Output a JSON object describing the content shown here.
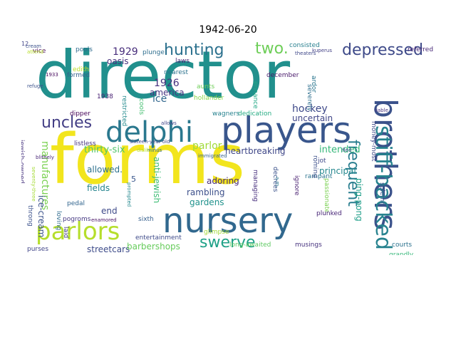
{
  "title": "1942-06-20",
  "words": [
    {
      "text": "director",
      "color": "#21908d"
    },
    {
      "text": "forms",
      "color": "#f2e51d"
    },
    {
      "text": "players",
      "color": "#39568c"
    },
    {
      "text": "nursery",
      "color": "#31688e"
    },
    {
      "text": "delphi",
      "color": "#2a788e"
    },
    {
      "text": "brothers",
      "color": "#3b528b"
    },
    {
      "text": "parlors",
      "color": "#b5de2b"
    },
    {
      "text": "stiff-backed",
      "color": "#26828e"
    },
    {
      "text": "hunting",
      "color": "#2c718e"
    },
    {
      "text": "depressed",
      "color": "#3e4a89"
    },
    {
      "text": "uncles",
      "color": "#433e85"
    },
    {
      "text": "swerve",
      "color": "#1fa187"
    },
    {
      "text": "frequent",
      "color": "#287d8e"
    },
    {
      "text": "two.",
      "color": "#6ece58"
    },
    {
      "text": "1929",
      "color": "#472d7b"
    },
    {
      "text": "1926",
      "color": "#46337f"
    },
    {
      "text": "hockey",
      "color": "#3e4989"
    },
    {
      "text": "parlor",
      "color": "#a0da39"
    },
    {
      "text": "thirty-six",
      "color": "#50c46a"
    },
    {
      "text": "ice",
      "color": "#31678e"
    },
    {
      "text": "manufactures",
      "color": "#7ad151"
    },
    {
      "text": "intended",
      "color": "#35b779"
    },
    {
      "text": "principal",
      "color": "#24878e"
    },
    {
      "text": "heartbreaking",
      "color": "#3f4788"
    },
    {
      "text": "uncertain",
      "color": "#404588"
    },
    {
      "text": "ping-pong",
      "color": "#1f9e89"
    },
    {
      "text": "ice-cream",
      "color": "#3b528b"
    },
    {
      "text": "fields",
      "color": "#25848e"
    },
    {
      "text": "gardens",
      "color": "#20928c"
    },
    {
      "text": "anti-jewish",
      "color": "#3dbc74"
    },
    {
      "text": "streetcars",
      "color": "#3e4c8a"
    },
    {
      "text": "barbershops",
      "color": "#67cc5c"
    },
    {
      "text": "oasis",
      "color": "#46317e"
    },
    {
      "text": "america",
      "color": "#463480"
    },
    {
      "text": "rambling",
      "color": "#3c4f8a"
    },
    {
      "text": "adoring",
      "color": "#472c7a"
    },
    {
      "text": "allowed.",
      "color": "#2d718e"
    },
    {
      "text": "end",
      "color": "#3e4a89"
    },
    {
      "text": "5",
      "color": "#39568c"
    },
    {
      "text": "vice",
      "color": "#450457"
    },
    {
      "text": "pools",
      "color": "#2f6c8e"
    },
    {
      "text": "plunge",
      "color": "#2e6e8e"
    },
    {
      "text": "laws",
      "color": "#482475"
    },
    {
      "text": "consisted",
      "color": "#277f8e"
    },
    {
      "text": "december",
      "color": "#48186a"
    },
    {
      "text": "hollander",
      "color": "#86d549"
    },
    {
      "text": "dedication",
      "color": "#25ab82"
    },
    {
      "text": "wagners",
      "color": "#26818e"
    },
    {
      "text": "money-most",
      "color": "#3f4889"
    },
    {
      "text": "referred",
      "color": "#482878"
    },
    {
      "text": "severely",
      "color": "#2e6f8e"
    },
    {
      "text": "managing",
      "color": "#472f7d"
    },
    {
      "text": "passionate",
      "color": "#7ad151"
    },
    {
      "text": "rampant",
      "color": "#2b748e"
    },
    {
      "text": "long-awaited",
      "color": "#5ec962"
    },
    {
      "text": "musings",
      "color": "#46327e"
    },
    {
      "text": "courts",
      "color": "#2c728e"
    },
    {
      "text": "grandly",
      "color": "#35b779"
    },
    {
      "text": "solemn",
      "color": "#3a548c"
    },
    {
      "text": "pogroms",
      "color": "#453882"
    },
    {
      "text": "purses",
      "color": "#404588"
    },
    {
      "text": "throng",
      "color": "#3b518b"
    },
    {
      "text": "loving",
      "color": "#2f6b8e"
    },
    {
      "text": "pedal",
      "color": "#32658e"
    },
    {
      "text": "laid",
      "color": "#433d84"
    },
    {
      "text": "dipper",
      "color": "#440256"
    },
    {
      "text": "1938",
      "color": "#482173"
    },
    {
      "text": "edith",
      "color": "#bddf26"
    },
    {
      "text": "restricted",
      "color": "#238a8d"
    },
    {
      "text": "aunts",
      "color": "#6ece58"
    },
    {
      "text": "ardor",
      "color": "#2a768e"
    },
    {
      "text": "ignore",
      "color": "#481f70"
    },
    {
      "text": "roming",
      "color": "#3c4f8a"
    },
    {
      "text": "jot",
      "color": "#3e4989"
    },
    {
      "text": "decrees",
      "color": "#3b528b"
    },
    {
      "text": "jewish-owned",
      "color": "#46337f"
    },
    {
      "text": "glimpse",
      "color": "#a2da37"
    },
    {
      "text": "entertainment",
      "color": "#3e4a89"
    },
    {
      "text": "plunked",
      "color": "#482677"
    },
    {
      "text": "sixth",
      "color": "#355f8d"
    },
    {
      "text": "listless",
      "color": "#46327e"
    },
    {
      "text": "cools",
      "color": "#44bf70"
    },
    {
      "text": "nearest",
      "color": "#2c728e"
    },
    {
      "text": "formed",
      "color": "#34618d"
    },
    {
      "text": "ennance",
      "color": "#22a785"
    },
    {
      "text": "cream",
      "color": "#3b528b"
    },
    {
      "text": "kuperus",
      "color": "#424086"
    },
    {
      "text": "theaters",
      "color": "#3f4889"
    },
    {
      "text": "attend",
      "color": "#b8de29"
    },
    {
      "text": "refuge",
      "color": "#3b528b"
    },
    {
      "text": "liable",
      "color": "#46337f"
    },
    {
      "text": "fled",
      "color": "#3e4a89"
    },
    {
      "text": "allows",
      "color": "#404588"
    },
    {
      "text": "minus",
      "color": "#31688e"
    },
    {
      "text": "dislike",
      "color": "#b5de2b"
    },
    {
      "text": "enamored",
      "color": "#471063"
    },
    {
      "text": "prompted",
      "color": "#23888e"
    },
    {
      "text": "immigrated",
      "color": "#34618d"
    },
    {
      "text": "seventy-three",
      "color": "#a5db36"
    },
    {
      "text": "sixteen-year-old",
      "color": "#3e4a89"
    },
    {
      "text": "blithely",
      "color": "#482576"
    },
    {
      "text": "a.m.",
      "color": "#2a778e"
    },
    {
      "text": "1933",
      "color": "#46085c"
    },
    {
      "text": "12",
      "color": "#404588"
    }
  ]
}
